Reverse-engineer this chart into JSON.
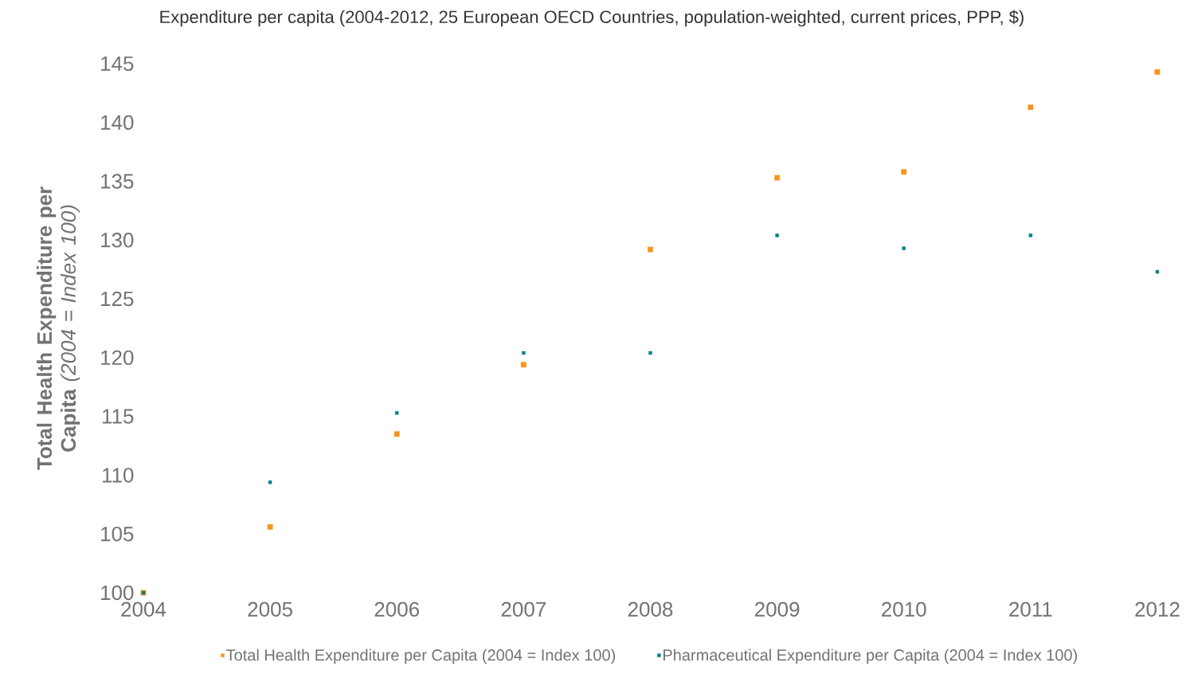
{
  "chart_data": {
    "type": "scatter",
    "title": "Expenditure per capita (2004-2012, 25 European OECD Countries, population-weighted, current prices, PPP, $)",
    "ylabel": "**Total Health Expenditure per Capita** *(2004 = Index 100)*",
    "x": [
      2004,
      2005,
      2006,
      2007,
      2008,
      2009,
      2010,
      2011,
      2012
    ],
    "series": [
      {
        "name": "Total Health Expenditure per Capita (2004 = Index 100)",
        "color": "#f7941d",
        "values": [
          100,
          105.6,
          113.5,
          119.4,
          129.2,
          135.3,
          135.8,
          141.3,
          144.3
        ]
      },
      {
        "name": "Pharmaceutical Expenditure per Capita (2004 = Index 100)",
        "color": "#00808a",
        "values": [
          100,
          109.4,
          115.3,
          120.4,
          120.4,
          130.4,
          129.3,
          130.4,
          127.3
        ]
      }
    ],
    "xlim": [
      2004,
      2012
    ],
    "xticks": [
      2004,
      2005,
      2006,
      2007,
      2008,
      2009,
      2010,
      2011,
      2012
    ],
    "ylim": [
      100,
      145
    ],
    "yticks": [
      100,
      105,
      110,
      115,
      120,
      125,
      130,
      135,
      140,
      145
    ],
    "grid": false,
    "legend": "bottom",
    "marker": "square"
  }
}
